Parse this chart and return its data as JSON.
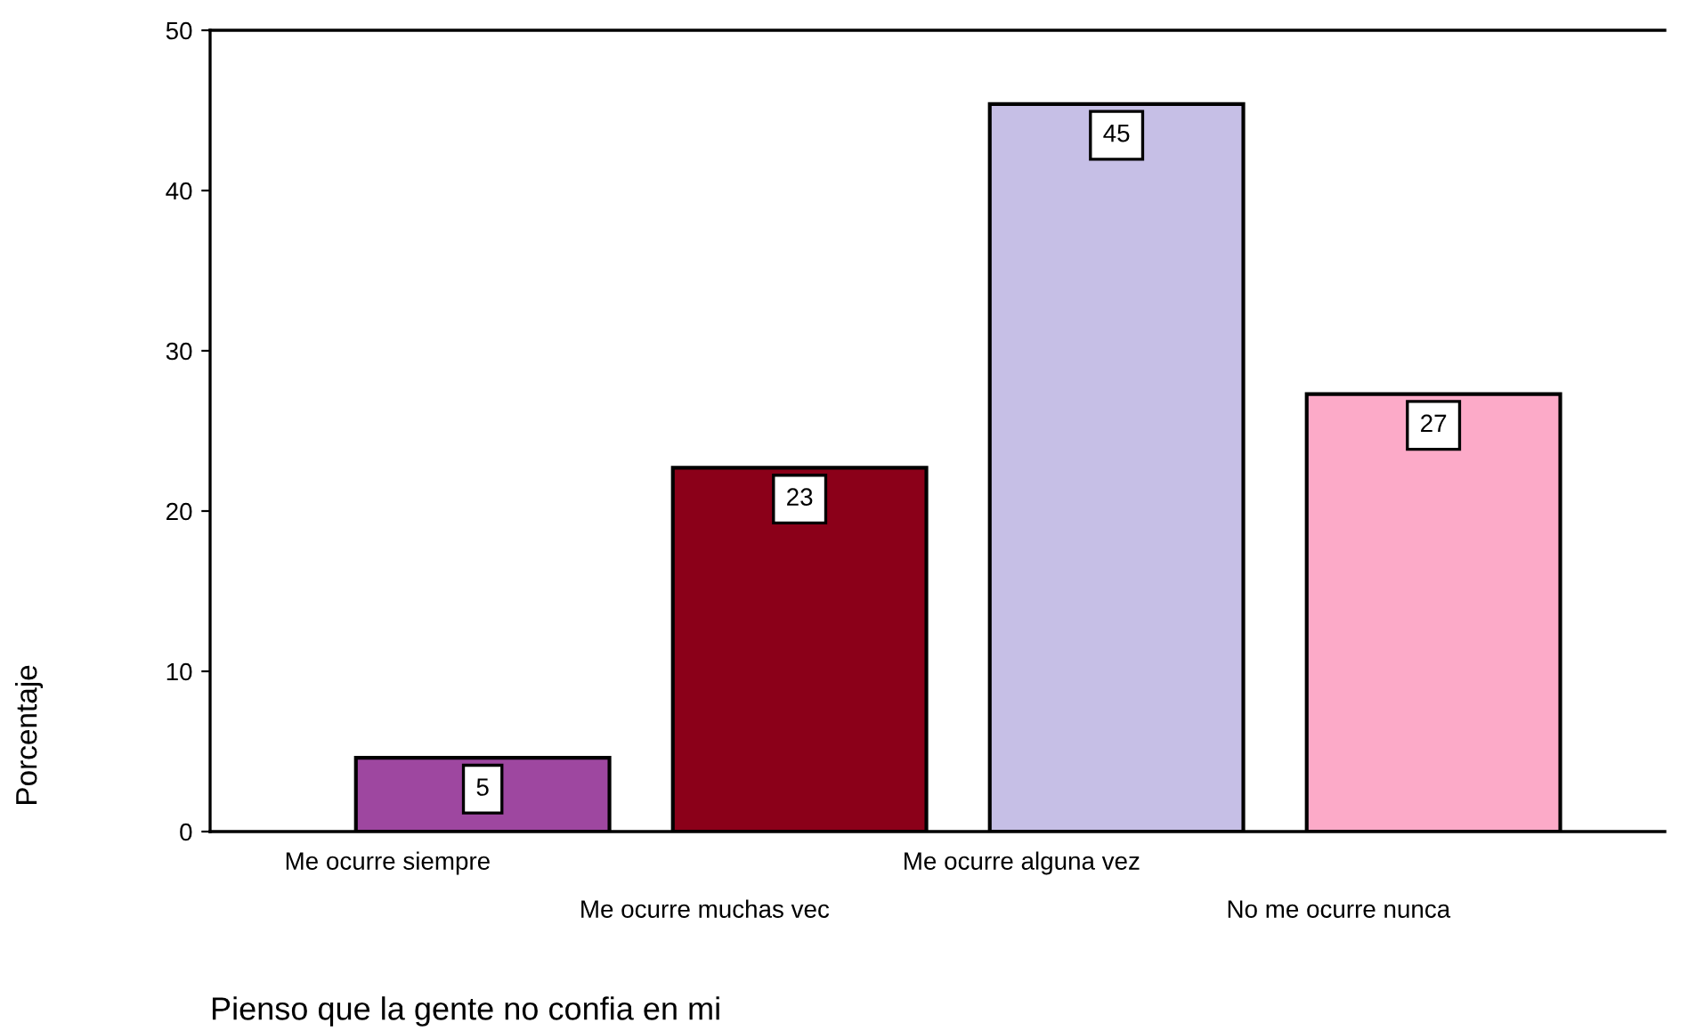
{
  "chart_data": {
    "type": "bar",
    "title": "Pienso que la gente no confia en mi",
    "ylabel": "Porcentaje",
    "categories": [
      "Me ocurre siempre",
      "Me ocurre muchas vec",
      "Me ocurre alguna vez",
      "No me ocurre nunca"
    ],
    "values": [
      4.6,
      22.7,
      45.4,
      27.3
    ],
    "value_labels": [
      "5",
      "23",
      "45",
      "27"
    ],
    "colors": [
      "#9e47a0",
      "#8b0019",
      "#c6bfe6",
      "#fcaac8"
    ],
    "ylim": [
      0,
      50
    ],
    "yticks": [
      0,
      10,
      20,
      30,
      40,
      50
    ],
    "grid": false,
    "legend": false
  }
}
